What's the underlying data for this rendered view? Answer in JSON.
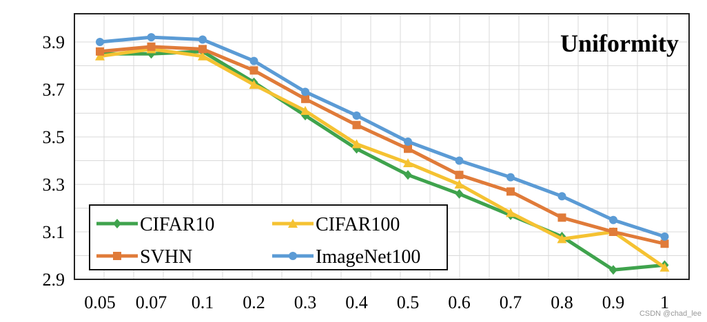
{
  "chart_data": {
    "type": "line",
    "title": "Uniformity",
    "xlabel": "",
    "ylabel": "",
    "categories": [
      "0.05",
      "0.07",
      "0.1",
      "0.2",
      "0.3",
      "0.4",
      "0.5",
      "0.6",
      "0.7",
      "0.8",
      "0.9",
      "1"
    ],
    "ylim": [
      2.9,
      4.0
    ],
    "yticks": [
      "3.9",
      "3.7",
      "3.5",
      "3.3",
      "3.1",
      "2.9"
    ],
    "grid": true,
    "legend_position": "bottom-left",
    "series": [
      {
        "name": "CIFAR10",
        "color": "#3fa34d",
        "marker": "diamond",
        "values": [
          3.85,
          3.85,
          3.86,
          3.73,
          3.59,
          3.45,
          3.34,
          3.26,
          3.17,
          3.08,
          2.94,
          2.96
        ]
      },
      {
        "name": "CIFAR100",
        "color": "#f5c232",
        "marker": "triangle",
        "values": [
          3.84,
          3.87,
          3.84,
          3.72,
          3.61,
          3.47,
          3.39,
          3.3,
          3.18,
          3.07,
          3.1,
          2.95
        ]
      },
      {
        "name": "SVHN",
        "color": "#e07b39",
        "marker": "square",
        "values": [
          3.86,
          3.88,
          3.87,
          3.78,
          3.66,
          3.55,
          3.45,
          3.34,
          3.27,
          3.16,
          3.1,
          3.05
        ]
      },
      {
        "name": "ImageNet100",
        "color": "#5b9bd5",
        "marker": "circle",
        "values": [
          3.9,
          3.92,
          3.91,
          3.82,
          3.69,
          3.59,
          3.48,
          3.4,
          3.33,
          3.25,
          3.15,
          3.08
        ]
      }
    ]
  },
  "watermark": "CSDN @chad_lee"
}
